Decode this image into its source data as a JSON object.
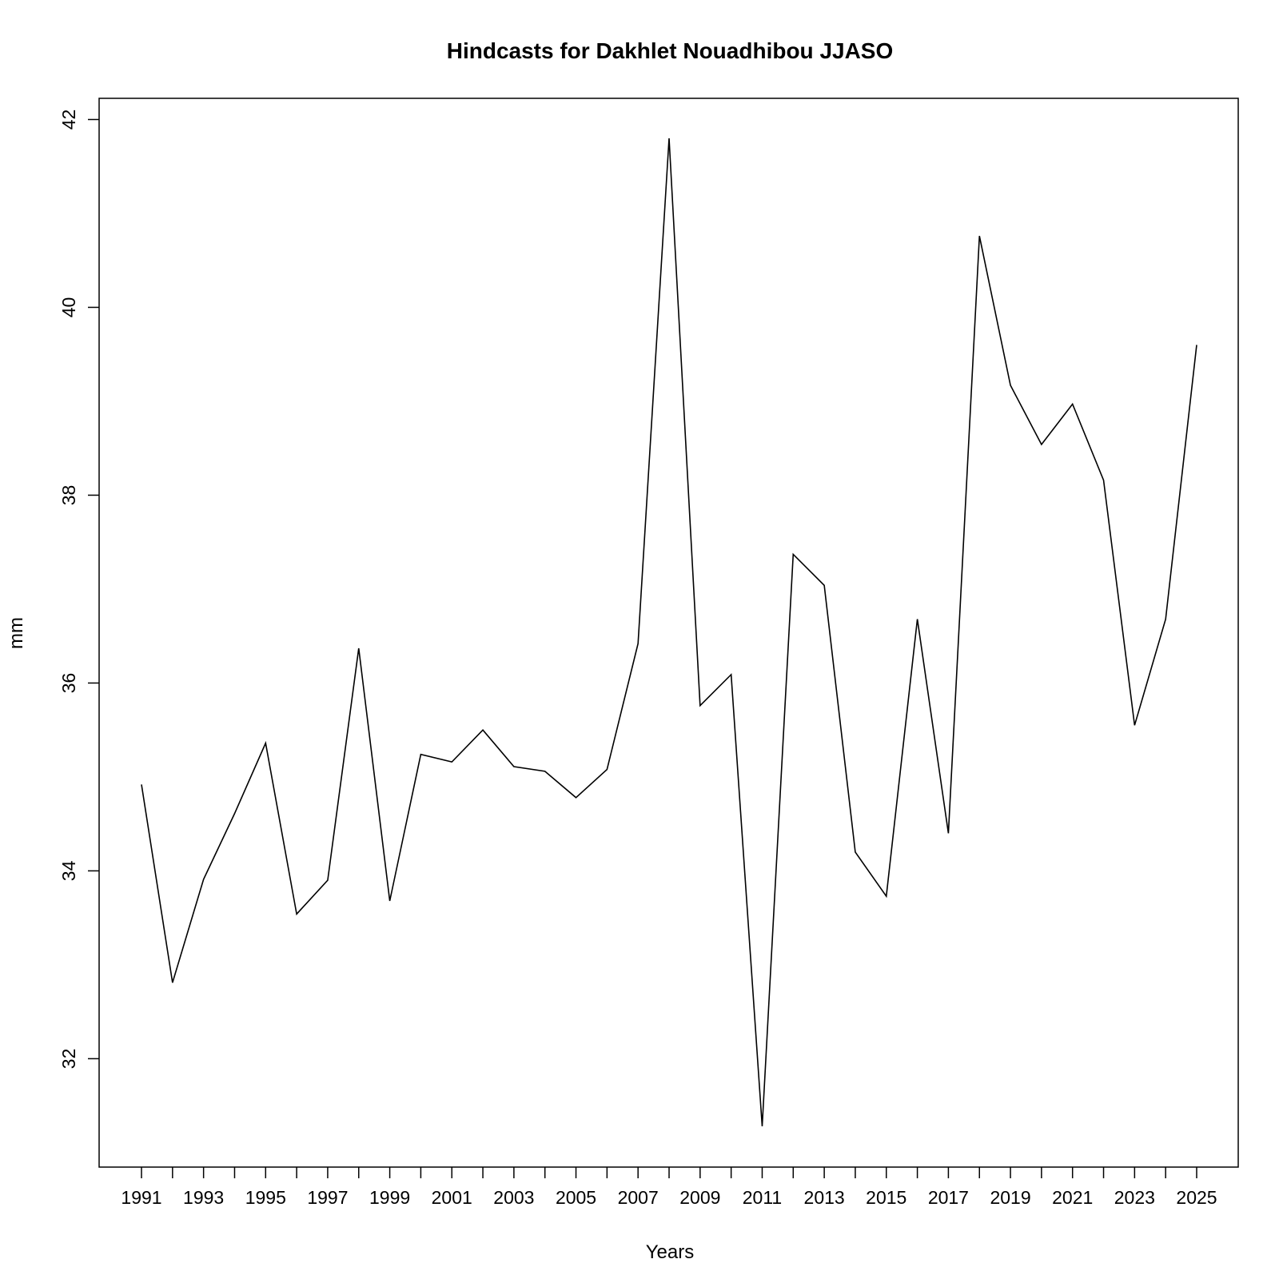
{
  "chart_data": {
    "type": "line",
    "title": "Hindcasts for Dakhlet Nouadhibou JJASO",
    "xlabel": "Years",
    "ylabel": "mm",
    "x": [
      1991,
      1992,
      1993,
      1994,
      1995,
      1996,
      1997,
      1998,
      1999,
      2000,
      2001,
      2002,
      2003,
      2004,
      2005,
      2006,
      2007,
      2008,
      2009,
      2010,
      2011,
      2012,
      2013,
      2014,
      2015,
      2016,
      2017,
      2018,
      2019,
      2020,
      2021,
      2022,
      2023,
      2024,
      2025
    ],
    "series": [
      {
        "values": [
          34.92,
          32.81,
          33.91,
          34.61,
          35.36,
          33.54,
          33.9,
          36.37,
          33.68,
          35.24,
          35.16,
          35.5,
          35.11,
          35.06,
          34.78,
          35.08,
          36.42,
          41.8,
          35.76,
          36.09,
          31.28,
          37.37,
          37.04,
          34.2,
          33.73,
          36.68,
          34.4,
          40.76,
          39.17,
          38.54,
          38.97,
          38.16,
          35.55,
          36.68,
          39.6
        ],
        "color": "#000000"
      }
    ],
    "xlim": [
      1991,
      2025
    ],
    "ylim": [
      31.28,
      41.8
    ],
    "yticks": [
      32,
      34,
      36,
      38,
      40,
      42
    ],
    "xticks": [
      1991,
      1992,
      1993,
      1994,
      1995,
      1996,
      1997,
      1998,
      1999,
      2000,
      2001,
      2002,
      2003,
      2004,
      2005,
      2006,
      2007,
      2008,
      2009,
      2010,
      2011,
      2012,
      2013,
      2014,
      2015,
      2016,
      2017,
      2018,
      2019,
      2020,
      2021,
      2022,
      2023,
      2024,
      2025
    ],
    "xtick_labels": [
      1991,
      1993,
      1995,
      1997,
      1999,
      2001,
      2003,
      2005,
      2007,
      2009,
      2011,
      2013,
      2015,
      2017,
      2019,
      2021,
      2023,
      2025
    ],
    "grid": false,
    "legend": "none"
  }
}
